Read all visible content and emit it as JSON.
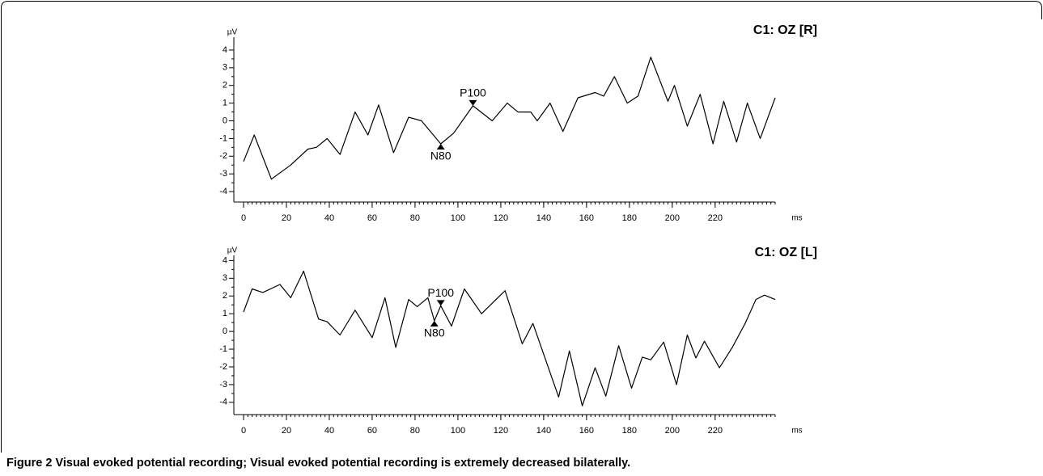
{
  "chart_data": [
    {
      "type": "line",
      "title": "C1: OZ [R]",
      "x_label": "ms",
      "y_label": "µV",
      "color": "#000000",
      "x": [
        0,
        5,
        13,
        22,
        30,
        34,
        39,
        45,
        52,
        58,
        63,
        70,
        77,
        83,
        92,
        98,
        107,
        116,
        123,
        128,
        134,
        137,
        143,
        149,
        156,
        164,
        168,
        173,
        179,
        184,
        190,
        198,
        201,
        207,
        213,
        219,
        224,
        230,
        235,
        241,
        248
      ],
      "values": [
        -2.3,
        -0.8,
        -3.3,
        -2.5,
        -1.6,
        -1.5,
        -1.0,
        -1.9,
        0.5,
        -0.8,
        0.9,
        -1.8,
        0.2,
        0,
        -1.3,
        -0.7,
        0.85,
        0,
        1.0,
        0.5,
        0.5,
        0,
        1.0,
        -0.6,
        1.3,
        1.6,
        1.4,
        2.5,
        1.0,
        1.4,
        3.6,
        1.1,
        2.0,
        -0.3,
        1.5,
        -1.3,
        1.1,
        -1.2,
        1.0,
        -1.0,
        1.3
      ],
      "xlim": [
        0,
        248
      ],
      "xticks": [
        0,
        20,
        40,
        60,
        80,
        100,
        120,
        140,
        160,
        180,
        200,
        220
      ],
      "ylim": [
        -4.5,
        4.5
      ],
      "yticks": [
        -4,
        -3,
        -2,
        -1,
        0,
        1,
        2,
        3,
        4
      ],
      "annotations": [
        {
          "text": "N80",
          "x": 92,
          "y": -1.3,
          "side": "below"
        },
        {
          "text": "P100",
          "x": 107,
          "y": 0.85,
          "side": "above"
        }
      ]
    },
    {
      "type": "line",
      "title": "C1: OZ [L]",
      "x_label": "ms",
      "y_label": "µV",
      "color": "#000000",
      "x": [
        0,
        4,
        9,
        17,
        22,
        28,
        35,
        39,
        45,
        52,
        60,
        66,
        71,
        77,
        81,
        86,
        89,
        92,
        97,
        103,
        111,
        122,
        130,
        135,
        147,
        152,
        158,
        164,
        169,
        175,
        181,
        186,
        190,
        196,
        202,
        207,
        211,
        215,
        222,
        228,
        234,
        239,
        243,
        248
      ],
      "values": [
        1.1,
        2.4,
        2.2,
        2.65,
        1.9,
        3.4,
        0.7,
        0.55,
        -0.2,
        1.2,
        -0.35,
        1.9,
        -0.9,
        1.8,
        1.4,
        1.9,
        0.6,
        1.45,
        0.3,
        2.4,
        1.0,
        2.3,
        -0.7,
        0.45,
        -3.7,
        -1.1,
        -4.2,
        -2.05,
        -3.65,
        -0.8,
        -3.2,
        -1.45,
        -1.6,
        -0.6,
        -3.0,
        -0.2,
        -1.5,
        -0.55,
        -2.05,
        -0.9,
        0.45,
        1.8,
        2.05,
        1.8
      ],
      "xlim": [
        0,
        248
      ],
      "xticks": [
        0,
        20,
        40,
        60,
        80,
        100,
        120,
        140,
        160,
        180,
        200,
        220
      ],
      "ylim": [
        -4.6,
        4.2
      ],
      "yticks": [
        -4,
        -3,
        -2,
        -1,
        0,
        1,
        2,
        3,
        4
      ],
      "annotations": [
        {
          "text": "N80",
          "x": 89,
          "y": 0.6,
          "side": "below"
        },
        {
          "text": "P100",
          "x": 92,
          "y": 1.45,
          "side": "above"
        }
      ]
    }
  ],
  "caption": {
    "label": "Figure 2",
    "text": "Visual evoked potential recording; Visual evoked potential recording is extremely decreased bilaterally."
  }
}
